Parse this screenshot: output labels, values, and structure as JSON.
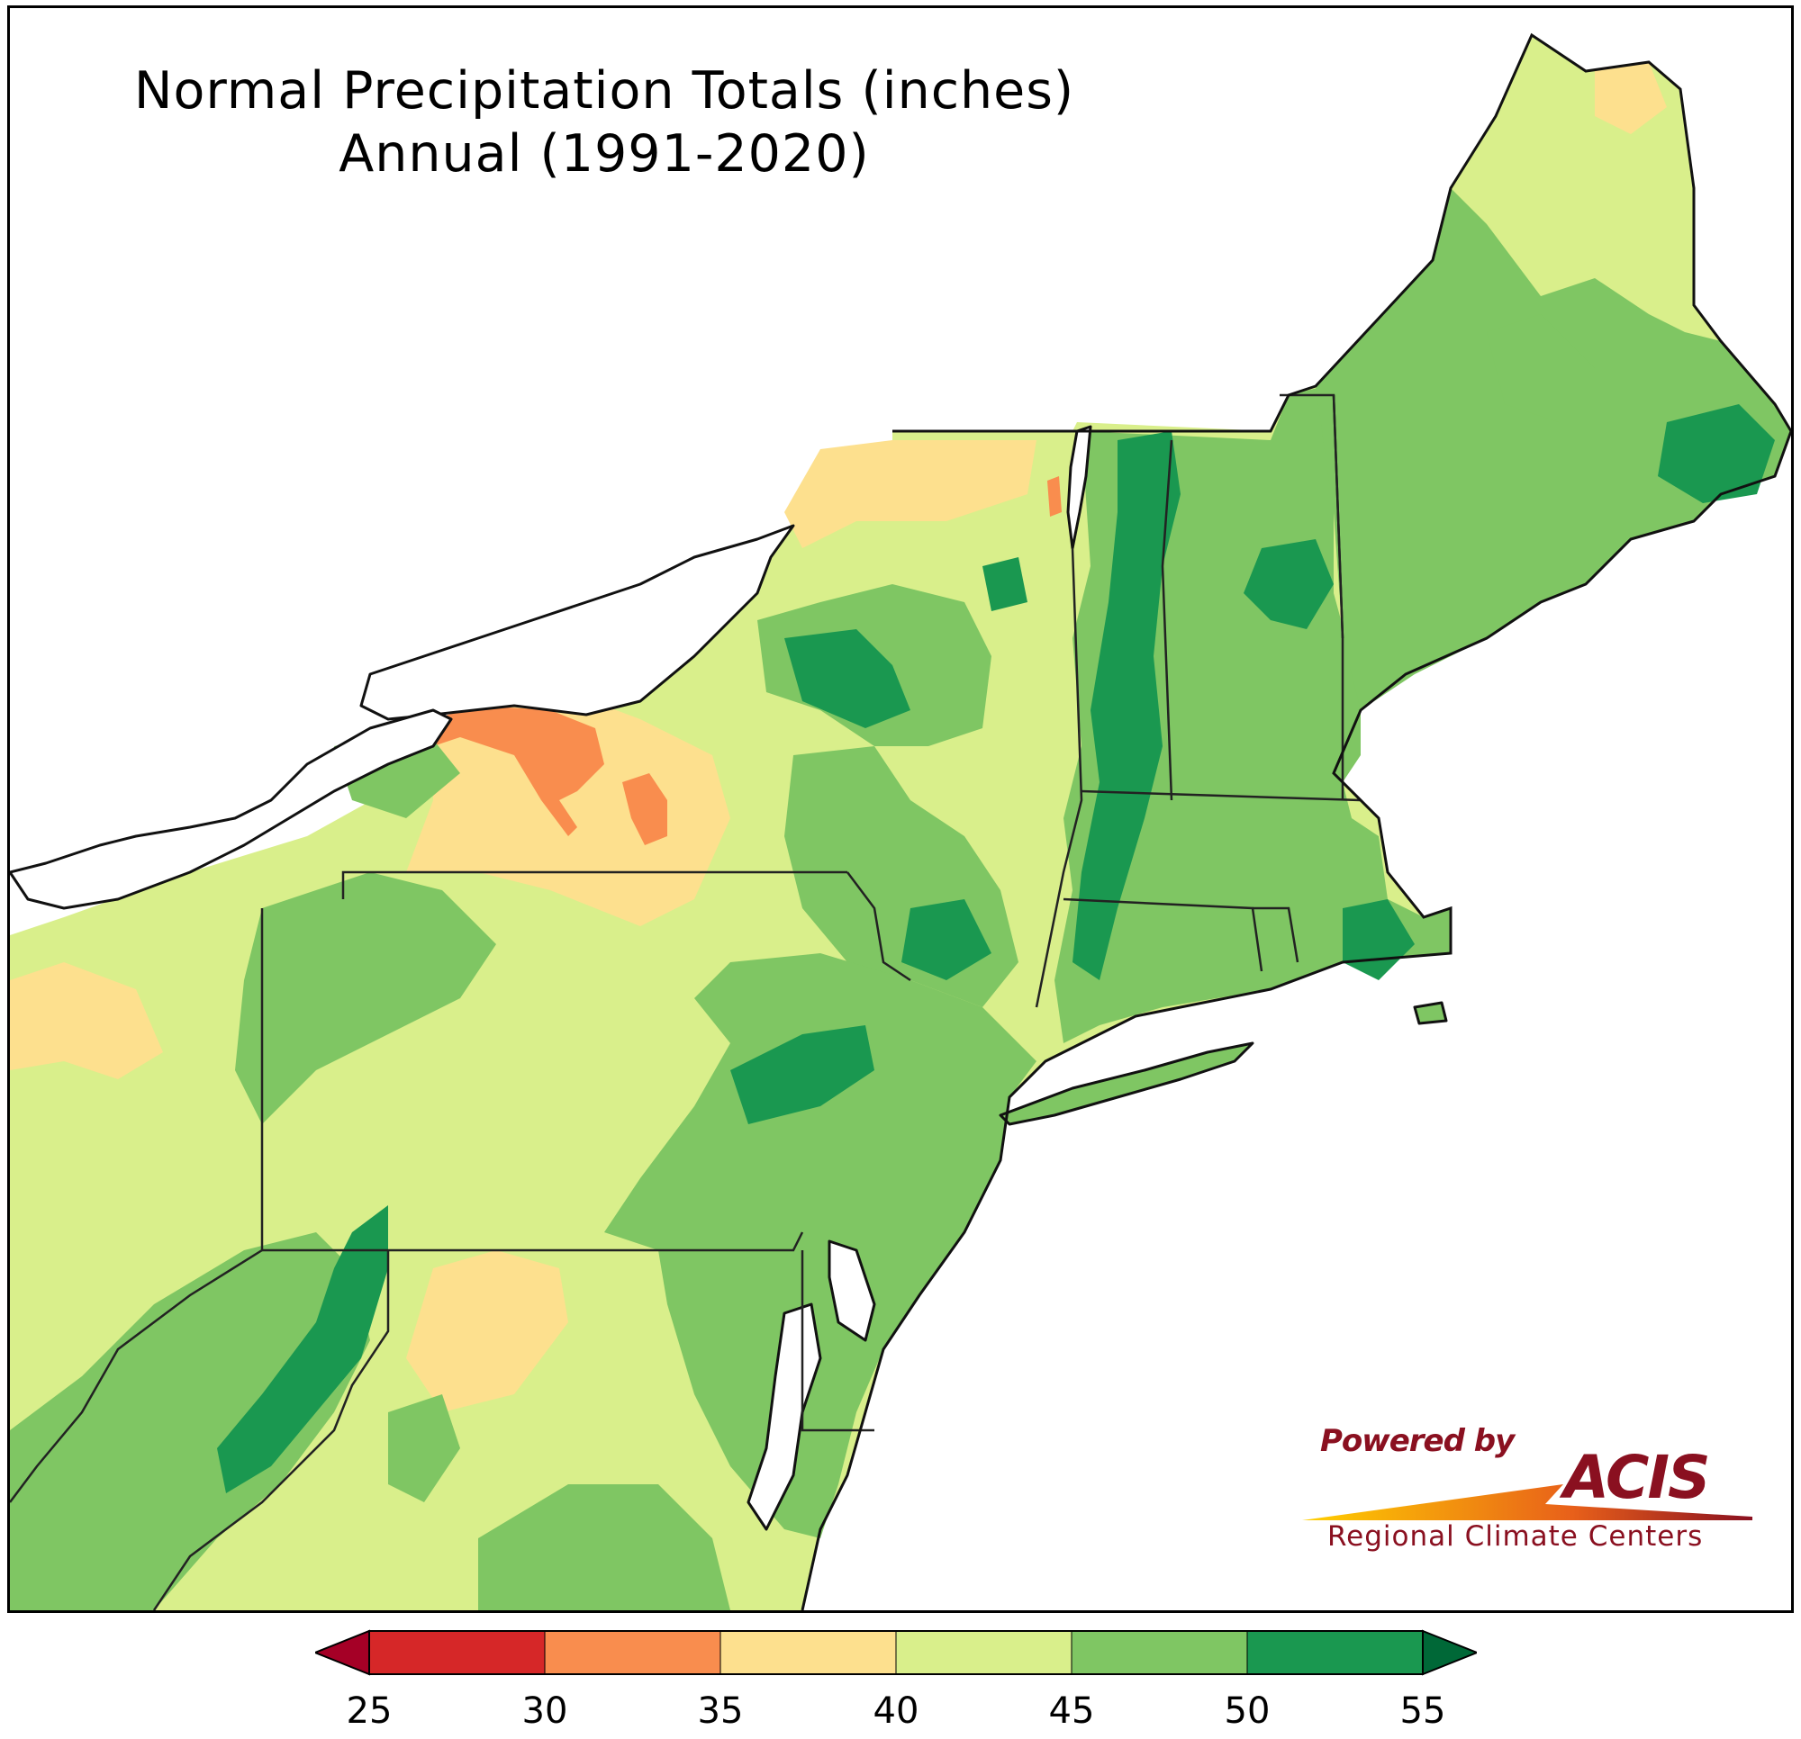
{
  "title": {
    "line1": "Normal Precipitation Totals (inches)",
    "line2": "Annual (1991-2020)"
  },
  "legend": {
    "ticks": [
      "25",
      "30",
      "35",
      "40",
      "45",
      "50",
      "55"
    ],
    "bins": [
      {
        "range": "25-30",
        "color": "#d62728"
      },
      {
        "range": "30-35",
        "color": "#f98d4e"
      },
      {
        "range": "35-40",
        "color": "#fde08e"
      },
      {
        "range": "40-45",
        "color": "#d9ef8b"
      },
      {
        "range": "45-50",
        "color": "#7fc663"
      },
      {
        "range": "50-55",
        "color": "#1a9850"
      }
    ],
    "under_color": "#a50026",
    "over_color": "#006837"
  },
  "logo": {
    "powered": "Powered by",
    "name": "ACIS",
    "subtitle": "Regional Climate Centers"
  },
  "colors": {
    "water": "#ffffff",
    "outline": "#111111",
    "county_lines": "#9aa37a"
  }
}
